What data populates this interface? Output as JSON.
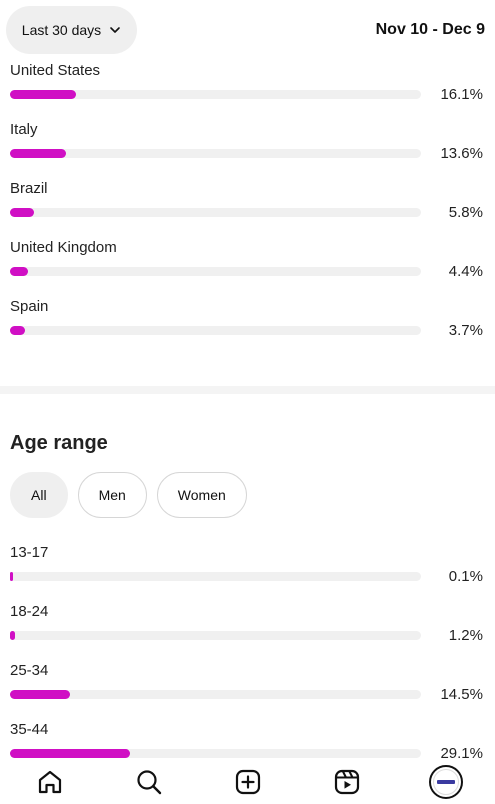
{
  "header": {
    "range_label": "Last 30 days",
    "date_range": "Nov 10 - Dec 9"
  },
  "countries": [
    {
      "label": "United States",
      "value": "16.1%",
      "fraction": 0.161
    },
    {
      "label": "Italy",
      "value": "13.6%",
      "fraction": 0.136
    },
    {
      "label": "Brazil",
      "value": "5.8%",
      "fraction": 0.058
    },
    {
      "label": "United Kingdom",
      "value": "4.4%",
      "fraction": 0.044
    },
    {
      "label": "Spain",
      "value": "3.7%",
      "fraction": 0.037
    }
  ],
  "age": {
    "title": "Age range",
    "filters": [
      "All",
      "Men",
      "Women"
    ],
    "selected_filter": "All",
    "rows": [
      {
        "label": "13-17",
        "value": "0.1%",
        "fraction": 0.001
      },
      {
        "label": "18-24",
        "value": "1.2%",
        "fraction": 0.012
      },
      {
        "label": "25-34",
        "value": "14.5%",
        "fraction": 0.145
      },
      {
        "label": "35-44",
        "value": "29.1%",
        "fraction": 0.291
      }
    ]
  },
  "colors": {
    "accent": "#d00fc4",
    "track": "#f0f0f0"
  },
  "nav": {
    "icons": [
      "home-icon",
      "search-icon",
      "create-icon",
      "reels-icon",
      "profile-avatar"
    ]
  }
}
